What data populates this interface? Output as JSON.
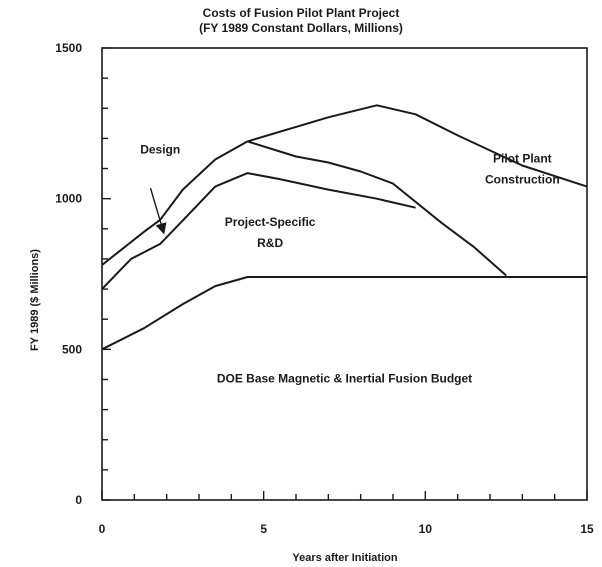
{
  "chart_data": {
    "type": "line",
    "title": "Costs of Fusion Pilot Plant Project",
    "subtitle": "(FY 1989 Constant Dollars, Millions)",
    "xlabel": "Years after Initiation",
    "ylabel": "FY 1989 ($ Millions)",
    "xlim": [
      0,
      15
    ],
    "ylim": [
      0,
      1500
    ],
    "x_ticks": [
      0,
      5,
      10,
      15
    ],
    "y_ticks": [
      0,
      500,
      1000,
      1500
    ],
    "grid": false,
    "series": [
      {
        "x": [
          0,
          1.3,
          2.5,
          3.5,
          4.5,
          10,
          15
        ],
        "y": [
          500,
          570,
          650,
          710,
          740,
          740,
          740
        ]
      },
      {
        "x": [
          0,
          0.9,
          1.8,
          2.7,
          3.5,
          4.5,
          5.5,
          7,
          8.5,
          9.7
        ],
        "y": [
          700,
          800,
          850,
          950,
          1040,
          1085,
          1065,
          1030,
          1000,
          970
        ]
      },
      {
        "x": [
          4.5,
          6,
          7,
          8,
          9,
          10.5,
          11.5,
          12.5
        ],
        "y": [
          1190,
          1140,
          1120,
          1090,
          1050,
          920,
          840,
          745
        ]
      },
      {
        "x": [
          0,
          1.3,
          1.8,
          2.5,
          3.5,
          4.5,
          7,
          8.5,
          9.7,
          11,
          13,
          15
        ],
        "y": [
          780,
          890,
          930,
          1030,
          1130,
          1190,
          1270,
          1310,
          1280,
          1210,
          1110,
          1040
        ]
      }
    ],
    "annotations": [
      {
        "text": "Design",
        "x": 1.8,
        "y": 1150
      },
      {
        "text": "Project-Specific",
        "x": 5.2,
        "y": 910
      },
      {
        "text": "R&D",
        "x": 5.2,
        "y": 840
      },
      {
        "text": "Pilot Plant",
        "x": 13.0,
        "y": 1120
      },
      {
        "text": "Construction",
        "x": 13.0,
        "y": 1050
      },
      {
        "text": "DOE Base Magnetic & Inertial Fusion Budget",
        "x": 7.5,
        "y": 390
      }
    ]
  }
}
